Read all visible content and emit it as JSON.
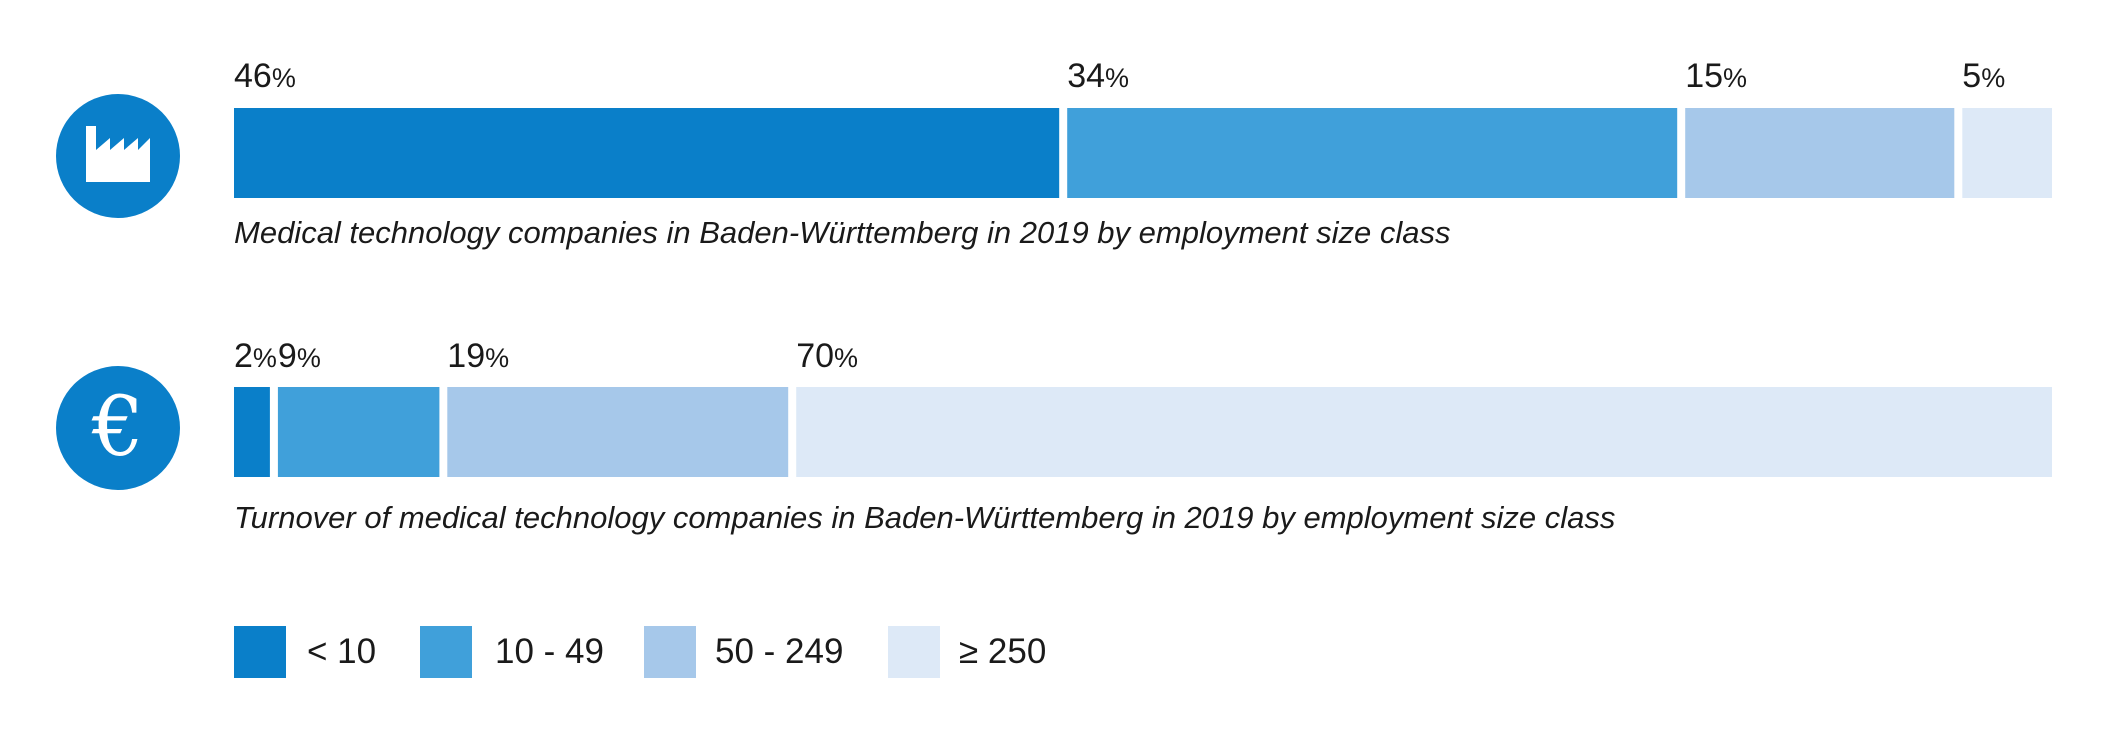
{
  "colors": {
    "lt10": "#0a7fc9",
    "10to49": "#40a0da",
    "50to249": "#a6c8ea",
    "ge250": "#dde9f7",
    "icon_bg": "#0a7fc9"
  },
  "icons": {
    "row1": "factory-icon",
    "row2": "euro-icon",
    "euro_symbol": "€"
  },
  "legend": [
    {
      "label": "< 10",
      "color": "#0a7fc9"
    },
    {
      "label": "10 - 49",
      "color": "#40a0da"
    },
    {
      "label": "50 - 249",
      "color": "#a6c8ea"
    },
    {
      "label": "≥ 250",
      "color": "#dde9f7"
    }
  ],
  "chart_data": [
    {
      "type": "bar",
      "orientation": "horizontal-stacked-100",
      "title": "Medical technology companies in Baden-Württemberg in 2019 by employment size class",
      "categories": [
        "< 10",
        "10 - 49",
        "50 - 249",
        "≥ 250"
      ],
      "values": [
        46,
        34,
        15,
        5
      ],
      "value_labels": [
        "46",
        "34",
        "15",
        "5"
      ],
      "unit": "%"
    },
    {
      "type": "bar",
      "orientation": "horizontal-stacked-100",
      "title": "Turnover of medical technology companies in Baden-Württemberg in 2019 by employment size class",
      "categories": [
        "< 10",
        "10 - 49",
        "50 - 249",
        "≥ 250"
      ],
      "values": [
        2,
        9,
        19,
        70
      ],
      "value_labels": [
        "2",
        "9",
        "19",
        "70"
      ],
      "unit": "%"
    }
  ]
}
